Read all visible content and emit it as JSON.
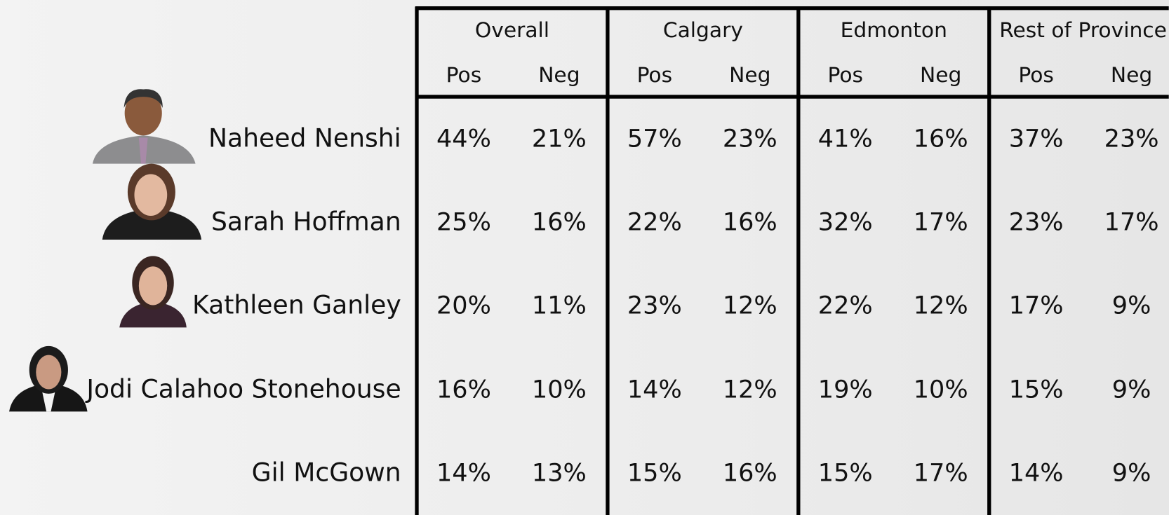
{
  "table": {
    "groups": [
      "Overall",
      "Calgary",
      "Edmonton",
      "Rest of Province"
    ],
    "subheaders": [
      "Pos",
      "Neg",
      "Pos",
      "Neg",
      "Pos",
      "Neg",
      "Pos",
      "Neg"
    ],
    "rows": [
      {
        "name": "Naheed Nenshi",
        "cells": [
          "44%",
          "21%",
          "57%",
          "23%",
          "41%",
          "16%",
          "37%",
          "23%"
        ]
      },
      {
        "name": "Sarah Hoffman",
        "cells": [
          "25%",
          "16%",
          "22%",
          "16%",
          "32%",
          "17%",
          "23%",
          "17%"
        ]
      },
      {
        "name": "Kathleen Ganley",
        "cells": [
          "20%",
          "11%",
          "23%",
          "12%",
          "22%",
          "12%",
          "17%",
          "9%"
        ]
      },
      {
        "name": "Jodi Calahoo Stonehouse",
        "cells": [
          "16%",
          "10%",
          "14%",
          "12%",
          "19%",
          "10%",
          "15%",
          "9%"
        ]
      },
      {
        "name": "Gil McGown",
        "cells": [
          "14%",
          "13%",
          "15%",
          "16%",
          "15%",
          "17%",
          "14%",
          "9%"
        ]
      }
    ]
  }
}
